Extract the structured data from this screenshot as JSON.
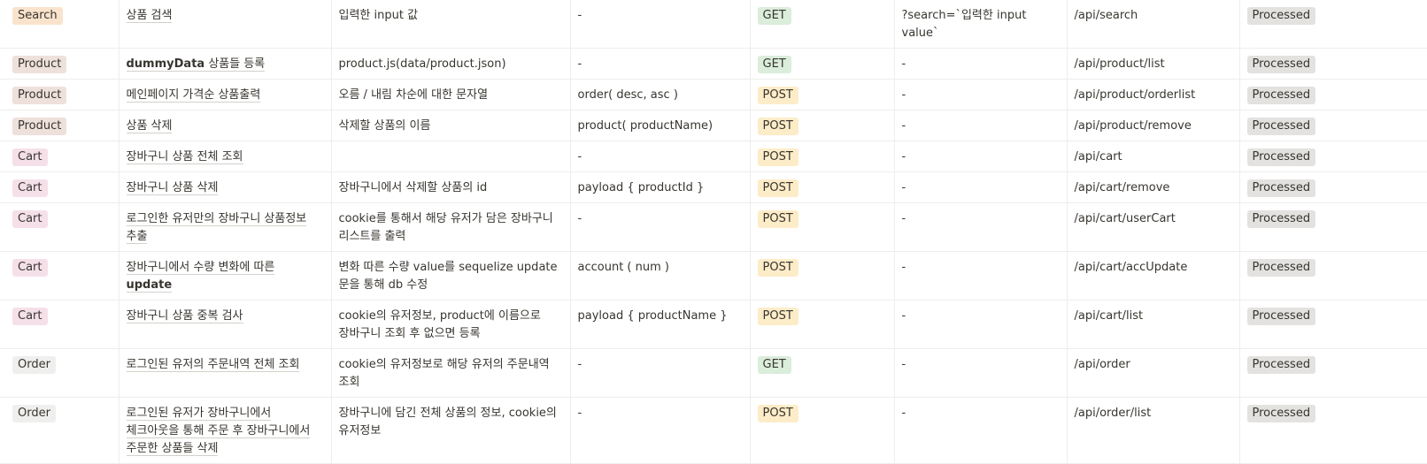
{
  "colors": {
    "search_tag": "#fae3cd",
    "product_tag": "#eee0da",
    "cart_tag": "#f5e0e9",
    "order_tag": "#efefee",
    "get_tag": "#dbeddb",
    "post_tag": "#fdecc8",
    "status_tag": "#e3e2e0"
  },
  "rows": [
    {
      "category": "Search",
      "name_pre": "",
      "name_bold": "",
      "name": "상품 검색",
      "description": "입력한 input 값",
      "param": "-",
      "method": "GET",
      "query": "?search=`입력한 input value`",
      "url": "/api/search",
      "status": "Processed"
    },
    {
      "category": "Product",
      "name_bold": "dummyData",
      "name": " 상품들 등록",
      "description": "product.js(data/product.json)",
      "param": "-",
      "method": "GET",
      "query": "-",
      "url": "/api/product/list",
      "status": "Processed"
    },
    {
      "category": "Product",
      "name_bold": "",
      "name": "메인페이지 가격순 상품출력",
      "description": "오름 / 내림 차순에 대한 문자열",
      "param": "order( desc, asc )",
      "method": "POST",
      "query": "-",
      "url": "/api/product/orderlist",
      "status": "Processed"
    },
    {
      "category": "Product",
      "name_bold": "",
      "name": "상품 삭제",
      "description": "삭제할 상품의 이름",
      "param": "product( productName)",
      "method": "POST",
      "query": "-",
      "url": "/api/product/remove",
      "status": "Processed"
    },
    {
      "category": "Cart",
      "name_bold": "",
      "name": "장바구니 상품 전체 조회",
      "description": "",
      "param": "-",
      "method": "POST",
      "query": "-",
      "url": "/api/cart",
      "status": "Processed"
    },
    {
      "category": "Cart",
      "name_bold": "",
      "name": "장바구니 상품 삭제",
      "description": "장바구니에서 삭제할 상품의 id",
      "param": "payload { productId }",
      "method": "POST",
      "query": "-",
      "url": "/api/cart/remove",
      "status": "Processed"
    },
    {
      "category": "Cart",
      "name_bold": "",
      "name": "로그인한 유저만의 장바구니 상품정보 추출",
      "description": "cookie를 통해서 해당 유저가 담은 장바구니 리스트를 출력",
      "param": "-",
      "method": "POST",
      "query": "-",
      "url": "/api/cart/userCart",
      "status": "Processed"
    },
    {
      "category": "Cart",
      "name_bold": "",
      "name": "장바구니에서 수량 변화에 따른 ",
      "name_tail_bold": "update",
      "description": "변화 따른 수량 value를 sequelize update 문을 통해 db 수정",
      "param": "account ( num )",
      "method": "POST",
      "query": "-",
      "url": "/api/cart/accUpdate",
      "status": "Processed"
    },
    {
      "category": "Cart",
      "name_bold": "",
      "name": "장바구니 상품 중복 검사",
      "description": "cookie의 유저정보, product에 이름으로 장바구니 조회 후 없으면 등록",
      "param": "payload { productName }",
      "method": "POST",
      "query": "-",
      "url": "/api/cart/list",
      "status": "Processed"
    },
    {
      "category": "Order",
      "name_bold": "",
      "name": "로그인된 유저의 주문내역 전체 조회",
      "description": "cookie의 유저정보로 해당 유저의 주문내역 조회",
      "param": "-",
      "method": "GET",
      "query": "-",
      "url": "/api/order",
      "status": "Processed"
    },
    {
      "category": "Order",
      "name_bold": "",
      "name": "로그인된 유저가 장바구니에서 체크아웃을 통해 주문 후 장바구니에서 주문한 상품들 삭제",
      "description": "장바구니에 담긴 전체 상품의 정보, cookie의 유저정보",
      "param": "-",
      "method": "POST",
      "query": "-",
      "url": "/api/order/list",
      "status": "Processed"
    }
  ]
}
